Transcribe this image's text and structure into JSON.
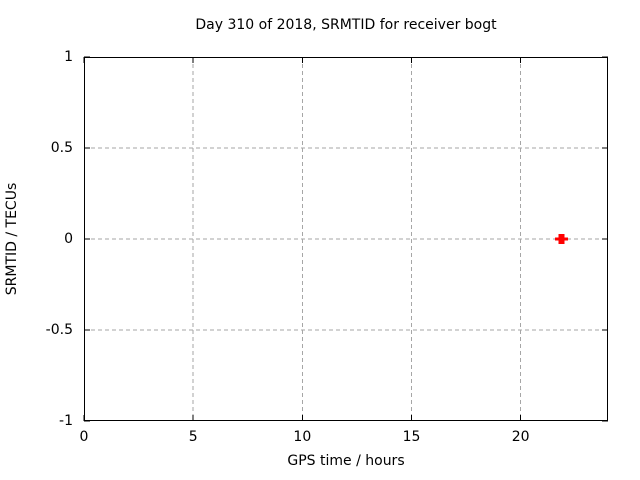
{
  "chart_data": {
    "type": "scatter",
    "title": "Day 310 of 2018, SRMTID for receiver bogt",
    "xlabel": "GPS time / hours",
    "ylabel": "SRMTID / TECUs",
    "xlim": [
      0,
      24
    ],
    "ylim": [
      -1,
      1
    ],
    "xticks": [
      0,
      5,
      10,
      15,
      20
    ],
    "yticks": [
      -1,
      -0.5,
      0,
      0.5,
      1
    ],
    "grid": true,
    "legend_position": "none",
    "series": [
      {
        "name": "SRMTID",
        "marker": "plus",
        "color": "#ff0000",
        "points": [
          {
            "x": 21.8,
            "y": 0.0
          },
          {
            "x": 21.95,
            "y": 0.0
          }
        ]
      }
    ],
    "style": {
      "background_color": "#ffffff",
      "axis_color": "#000000",
      "grid_color": "#a6a6a6",
      "text_color": "#000000"
    }
  }
}
